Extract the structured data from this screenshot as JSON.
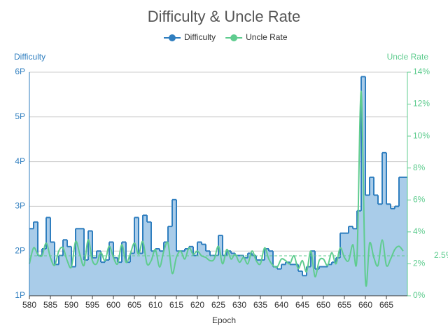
{
  "chart_data": {
    "type": "line",
    "title": "Difficulty & Uncle Rate",
    "x_label": "Epoch",
    "y_label": "Difficulty",
    "y2_label": "Uncle Rate",
    "legend": "top",
    "grid": true,
    "x": [
      580,
      581,
      582,
      583,
      584,
      585,
      586,
      587,
      588,
      589,
      590,
      591,
      592,
      593,
      594,
      595,
      596,
      597,
      598,
      599,
      600,
      601,
      602,
      603,
      604,
      605,
      606,
      607,
      608,
      609,
      610,
      611,
      612,
      613,
      614,
      615,
      616,
      617,
      618,
      619,
      620,
      621,
      622,
      623,
      624,
      625,
      626,
      627,
      628,
      629,
      630,
      631,
      632,
      633,
      634,
      635,
      636,
      637,
      638,
      639,
      640,
      641,
      642,
      643,
      644,
      645,
      646,
      647,
      648,
      649,
      650,
      651,
      652,
      653,
      654,
      655,
      656,
      657,
      658,
      659,
      660,
      661,
      662,
      663,
      664,
      665,
      666,
      667,
      668,
      669
    ],
    "xlim": [
      580,
      670
    ],
    "xticks": [
      580,
      585,
      590,
      595,
      600,
      605,
      610,
      615,
      620,
      625,
      630,
      635,
      640,
      645,
      650,
      655,
      660,
      665
    ],
    "ylim": [
      1,
      6
    ],
    "yticks": [
      {
        "value": 1,
        "label": "1P"
      },
      {
        "value": 2,
        "label": "2P"
      },
      {
        "value": 3,
        "label": "3P"
      },
      {
        "value": 4,
        "label": "4P"
      },
      {
        "value": 5,
        "label": "5P"
      },
      {
        "value": 6,
        "label": "6P"
      }
    ],
    "y2lim": [
      0,
      14
    ],
    "y2ticks": [
      {
        "value": 0,
        "label": "0%"
      },
      {
        "value": 2,
        "label": "2%"
      },
      {
        "value": 4,
        "label": "4%"
      },
      {
        "value": 6,
        "label": "6%"
      },
      {
        "value": 8,
        "label": "8%"
      },
      {
        "value": 10,
        "label": "10%"
      },
      {
        "value": 12,
        "label": "12%"
      },
      {
        "value": 14,
        "label": "14%"
      }
    ],
    "mark_line": {
      "value": 2.5,
      "label": "2.5%",
      "axis": "y2"
    },
    "series": [
      {
        "name": "Difficulty",
        "color": "#2f7ebf",
        "fill": "#a9cce9",
        "step": true,
        "values": [
          2.5,
          2.65,
          1.9,
          2.05,
          2.75,
          2.2,
          1.7,
          1.9,
          2.25,
          2.1,
          1.65,
          2.5,
          2.5,
          1.8,
          2.45,
          1.85,
          2.0,
          1.75,
          1.8,
          2.2,
          1.85,
          1.75,
          2.2,
          1.75,
          1.95,
          2.75,
          1.95,
          2.8,
          2.65,
          2.0,
          2.05,
          2.0,
          2.2,
          2.55,
          3.15,
          2.0,
          2.0,
          2.05,
          2.1,
          1.9,
          2.2,
          2.15,
          2.0,
          1.9,
          1.9,
          2.35,
          1.9,
          2.0,
          1.95,
          1.9,
          1.9,
          1.85,
          1.95,
          1.9,
          1.8,
          1.8,
          2.05,
          2.0,
          1.65,
          1.6,
          1.7,
          1.75,
          1.7,
          1.7,
          1.55,
          1.45,
          1.65,
          2.0,
          1.6,
          1.65,
          1.65,
          1.7,
          1.75,
          1.85,
          2.4,
          2.4,
          2.55,
          2.5,
          2.9,
          5.9,
          3.25,
          3.65,
          3.25,
          3.05,
          4.2,
          3.05,
          2.95,
          3.0,
          3.65,
          3.65
        ]
      },
      {
        "name": "Uncle Rate",
        "color": "#5fcc8f",
        "axis": "y2",
        "smooth": true,
        "values": [
          2.0,
          3.0,
          2.6,
          2.5,
          3.3,
          2.4,
          1.9,
          2.8,
          3.0,
          2.2,
          1.8,
          3.4,
          2.6,
          1.9,
          3.5,
          2.2,
          2.0,
          2.7,
          2.2,
          3.1,
          2.4,
          2.0,
          3.2,
          2.1,
          2.6,
          3.3,
          2.6,
          3.4,
          2.0,
          2.2,
          2.9,
          1.8,
          2.8,
          3.3,
          1.4,
          2.4,
          2.8,
          2.3,
          3.0,
          2.6,
          2.8,
          2.5,
          2.4,
          2.2,
          2.3,
          3.1,
          2.0,
          2.9,
          2.3,
          2.6,
          2.1,
          2.4,
          2.0,
          2.8,
          2.2,
          2.0,
          3.0,
          2.3,
          1.9,
          1.8,
          2.3,
          2.2,
          2.0,
          2.5,
          1.7,
          2.2,
          1.5,
          2.8,
          1.2,
          2.2,
          2.3,
          1.9,
          2.7,
          2.0,
          3.0,
          2.4,
          2.2,
          3.2,
          2.4,
          12.8,
          1.0,
          3.3,
          2.4,
          1.9,
          3.5,
          1.9,
          2.3,
          2.9,
          3.1,
          2.8
        ]
      }
    ]
  }
}
